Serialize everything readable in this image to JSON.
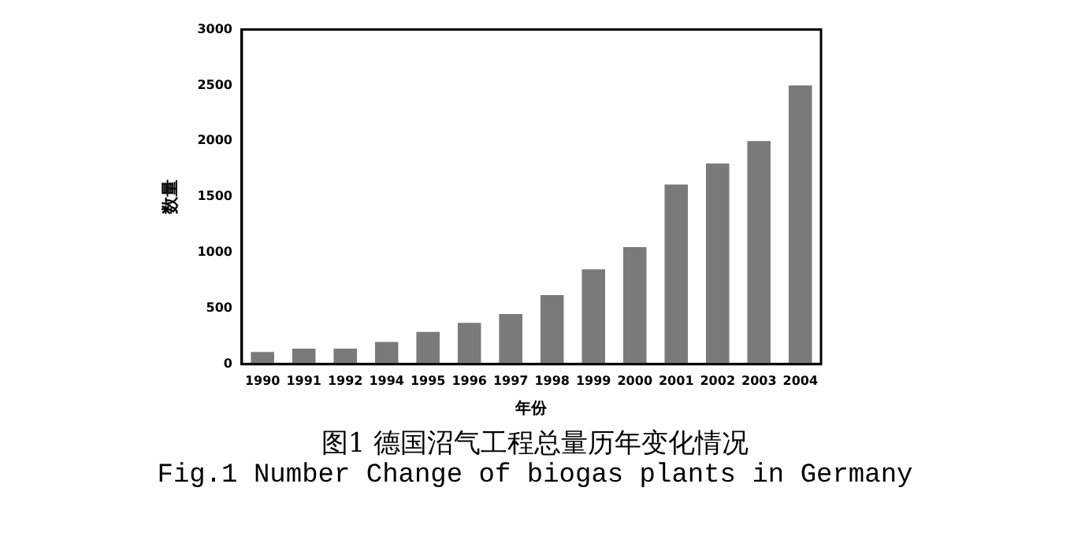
{
  "chart_data": {
    "type": "bar",
    "title": "图1 德国沼气工程总量历年变化情况",
    "subtitle": "Fig.1 Number Change of biogas plants in Germany",
    "xlabel": "年份",
    "ylabel": "数量",
    "categories": [
      "1990",
      "1991",
      "1992",
      "1994",
      "1995",
      "1996",
      "1997",
      "1998",
      "1999",
      "2000",
      "2001",
      "2002",
      "2003",
      "2004"
    ],
    "values": [
      110,
      140,
      140,
      200,
      290,
      370,
      450,
      620,
      850,
      1050,
      1610,
      1800,
      2000,
      2500
    ],
    "color": "#7a7a7a",
    "ylim": [
      0,
      3000
    ],
    "yticks": [
      0,
      500,
      1000,
      1500,
      2000,
      2500,
      3000
    ],
    "grid": false,
    "legend": false
  }
}
